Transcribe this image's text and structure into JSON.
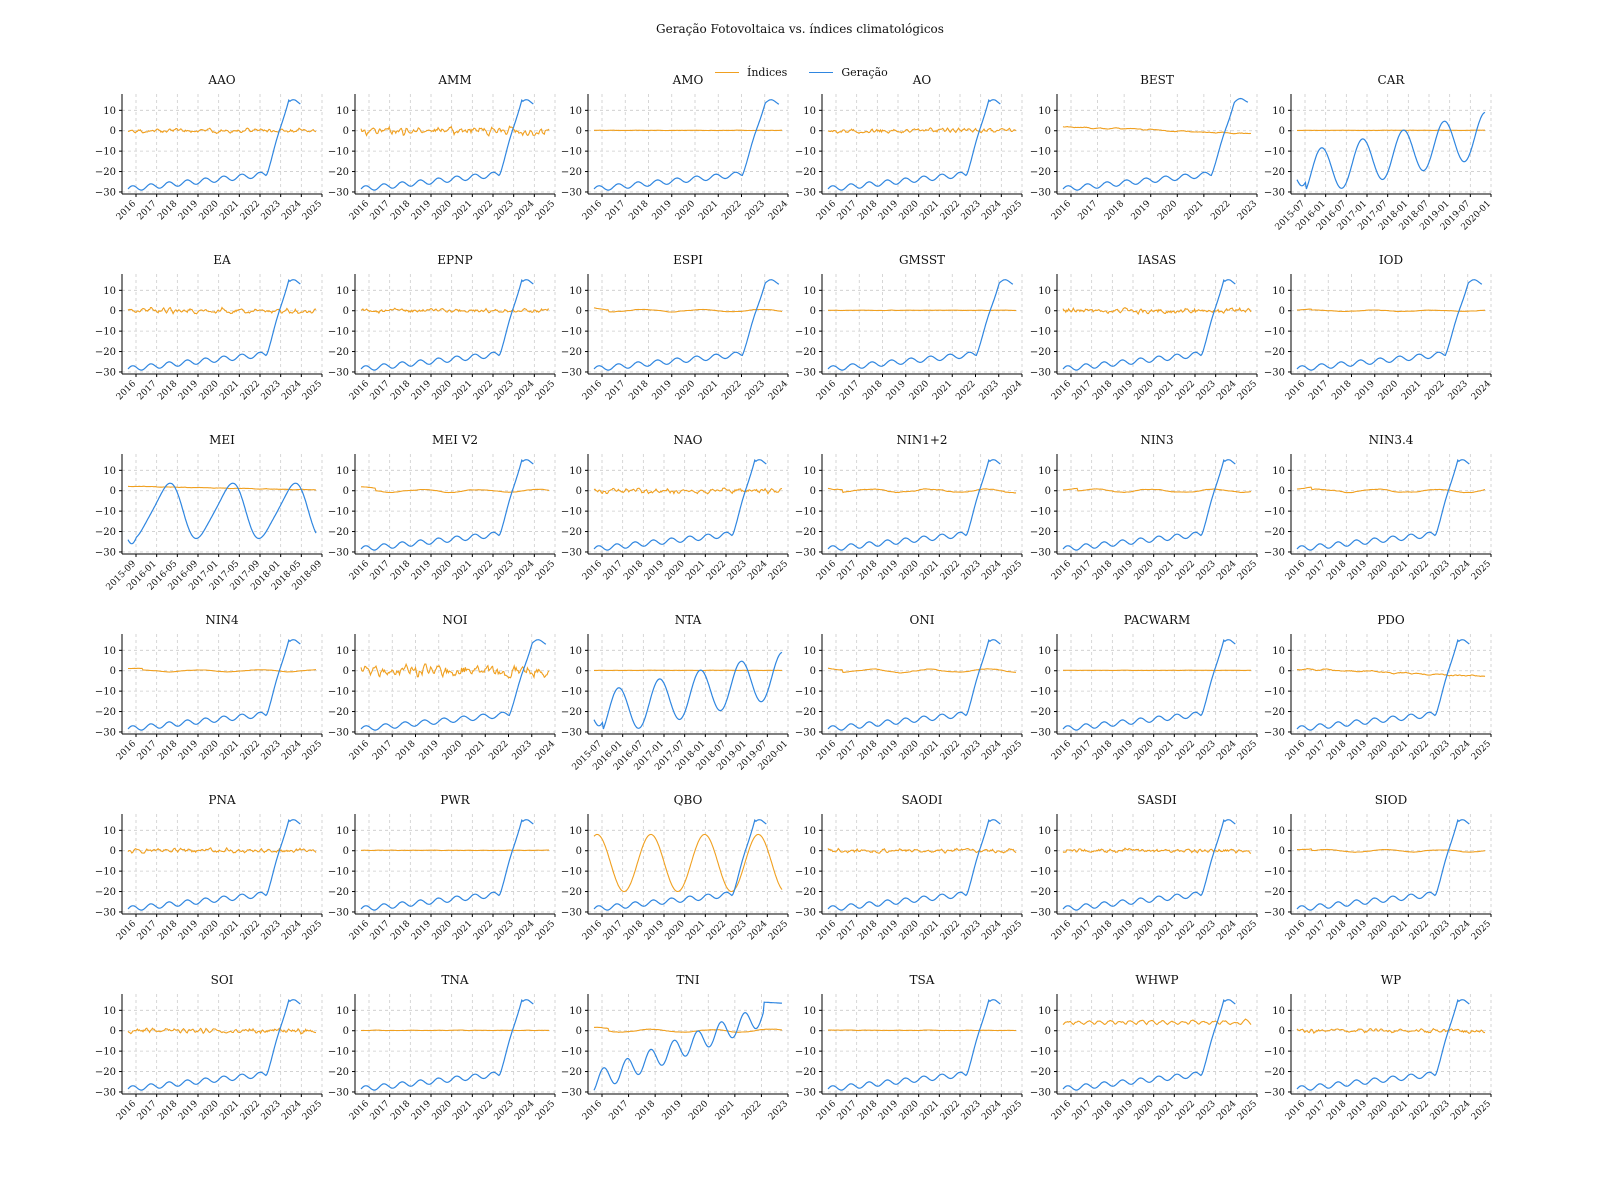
{
  "chart_data": {
    "type": "line",
    "title": "Geração Fotovoltaica vs. índices climatológicos",
    "legend": {
      "placement": "top-center",
      "entries": [
        {
          "name": "Índices",
          "color": "#f0a020"
        },
        {
          "name": "Geração",
          "color": "#2f86e0"
        }
      ]
    },
    "grid": true,
    "ylim": [
      -31,
      18
    ],
    "yticks": [
      "10",
      "0",
      "−10",
      "−20",
      "−30"
    ],
    "colors": {
      "indices": "#f0a020",
      "geracao": "#2f86e0"
    },
    "panels": [
      {
        "title": "AAO",
        "xticks": [
          "2016",
          "2017",
          "2018",
          "2019",
          "2020",
          "2021",
          "2022",
          "2023",
          "2024",
          "2025"
        ],
        "generation": "long",
        "index": {
          "style": "noisy",
          "amp": 1.3
        }
      },
      {
        "title": "AMM",
        "xticks": [
          "2016",
          "2017",
          "2018",
          "2019",
          "2020",
          "2021",
          "2022",
          "2023",
          "2024",
          "2025"
        ],
        "generation": "long",
        "index": {
          "style": "noisy",
          "amp": 2.5
        }
      },
      {
        "title": "AMO",
        "xticks": [
          "2016",
          "2017",
          "2018",
          "2019",
          "2020",
          "2021",
          "2022",
          "2023",
          "2024"
        ],
        "generation": "mid",
        "index": {
          "style": "flat",
          "amp": 0.3
        }
      },
      {
        "title": "AO",
        "xticks": [
          "2016",
          "2017",
          "2018",
          "2019",
          "2020",
          "2021",
          "2022",
          "2023",
          "2024",
          "2025"
        ],
        "generation": "long",
        "index": {
          "style": "noisy",
          "amp": 1.4
        }
      },
      {
        "title": "BEST",
        "xticks": [
          "2016",
          "2017",
          "2018",
          "2019",
          "2020",
          "2021",
          "2022",
          "2023"
        ],
        "generation": "short",
        "index": {
          "style": "drift",
          "amp": 1.0
        }
      },
      {
        "title": "CAR",
        "xticks": [
          "2015-07",
          "2016-01",
          "2016-07",
          "2017-01",
          "2017-07",
          "2018-01",
          "2018-07",
          "2019-01",
          "2019-07",
          "2020-01"
        ],
        "generation": "seasonal",
        "index": {
          "style": "flat",
          "amp": 0.2
        }
      },
      {
        "title": "EA",
        "xticks": [
          "2016",
          "2017",
          "2018",
          "2019",
          "2020",
          "2021",
          "2022",
          "2023",
          "2024",
          "2025"
        ],
        "generation": "long",
        "index": {
          "style": "noisy",
          "amp": 1.6
        }
      },
      {
        "title": "EPNP",
        "xticks": [
          "2016",
          "2017",
          "2018",
          "2019",
          "2020",
          "2021",
          "2022",
          "2023",
          "2024",
          "2025"
        ],
        "generation": "long",
        "index": {
          "style": "noisy",
          "amp": 1.2
        }
      },
      {
        "title": "ESPI",
        "xticks": [
          "2016",
          "2017",
          "2018",
          "2019",
          "2020",
          "2021",
          "2022",
          "2023",
          "2024"
        ],
        "generation": "mid",
        "index": {
          "style": "smooth",
          "amp": 1.0
        }
      },
      {
        "title": "GMSST",
        "xticks": [
          "2016",
          "2017",
          "2018",
          "2019",
          "2020",
          "2021",
          "2022",
          "2023",
          "2024"
        ],
        "generation": "mid",
        "index": {
          "style": "flat",
          "amp": 0.3
        }
      },
      {
        "title": "IASAS",
        "xticks": [
          "2016",
          "2017",
          "2018",
          "2019",
          "2020",
          "2021",
          "2022",
          "2023",
          "2024",
          "2025"
        ],
        "generation": "long",
        "index": {
          "style": "noisy",
          "amp": 1.6
        }
      },
      {
        "title": "IOD",
        "xticks": [
          "2016",
          "2017",
          "2018",
          "2019",
          "2020",
          "2021",
          "2022",
          "2023",
          "2024"
        ],
        "generation": "mid",
        "index": {
          "style": "smooth",
          "amp": 0.5
        }
      },
      {
        "title": "MEI",
        "xticks": [
          "2015-09",
          "2016-01",
          "2016-05",
          "2016-09",
          "2017-01",
          "2017-05",
          "2017-09",
          "2018-01",
          "2018-05",
          "2018-09"
        ],
        "generation": "mei",
        "index": {
          "style": "mei",
          "amp": 1.0
        }
      },
      {
        "title": "MEI V2",
        "xticks": [
          "2016",
          "2017",
          "2018",
          "2019",
          "2020",
          "2021",
          "2022",
          "2023",
          "2024",
          "2025"
        ],
        "generation": "long",
        "index": {
          "style": "smooth",
          "amp": 1.2
        }
      },
      {
        "title": "NAO",
        "xticks": [
          "2016",
          "2017",
          "2018",
          "2019",
          "2020",
          "2021",
          "2022",
          "2023",
          "2024",
          "2025"
        ],
        "generation": "long",
        "index": {
          "style": "noisy",
          "amp": 1.5
        }
      },
      {
        "title": "NIN1+2",
        "xticks": [
          "2016",
          "2017",
          "2018",
          "2019",
          "2020",
          "2021",
          "2022",
          "2023",
          "2024",
          "2025"
        ],
        "generation": "long",
        "index": {
          "style": "smooth",
          "amp": 1.5
        }
      },
      {
        "title": "NIN3",
        "xticks": [
          "2016",
          "2017",
          "2018",
          "2019",
          "2020",
          "2021",
          "2022",
          "2023",
          "2024",
          "2025"
        ],
        "generation": "long",
        "index": {
          "style": "smooth",
          "amp": 1.3
        }
      },
      {
        "title": "NIN3.4",
        "xticks": [
          "2016",
          "2017",
          "2018",
          "2019",
          "2020",
          "2021",
          "2022",
          "2023",
          "2024",
          "2025"
        ],
        "generation": "long",
        "index": {
          "style": "smooth",
          "amp": 1.3
        }
      },
      {
        "title": "NIN4",
        "xticks": [
          "2016",
          "2017",
          "2018",
          "2019",
          "2020",
          "2021",
          "2022",
          "2023",
          "2024",
          "2025"
        ],
        "generation": "long",
        "index": {
          "style": "smooth",
          "amp": 0.8
        }
      },
      {
        "title": "NOI",
        "xticks": [
          "2016",
          "2017",
          "2018",
          "2019",
          "2020",
          "2021",
          "2022",
          "2023",
          "2024"
        ],
        "generation": "mid",
        "index": {
          "style": "noisy",
          "amp": 3.5
        }
      },
      {
        "title": "NTA",
        "xticks": [
          "2015-07",
          "2016-01",
          "2016-07",
          "2017-01",
          "2017-07",
          "2018-01",
          "2018-07",
          "2019-01",
          "2019-07",
          "2020-01"
        ],
        "generation": "seasonal",
        "index": {
          "style": "flat",
          "amp": 0.2
        }
      },
      {
        "title": "ONI",
        "xticks": [
          "2016",
          "2017",
          "2018",
          "2019",
          "2020",
          "2021",
          "2022",
          "2023",
          "2024",
          "2025"
        ],
        "generation": "long",
        "index": {
          "style": "smooth",
          "amp": 1.3
        }
      },
      {
        "title": "PACWARM",
        "xticks": [
          "2016",
          "2017",
          "2018",
          "2019",
          "2020",
          "2021",
          "2022",
          "2023",
          "2024",
          "2025"
        ],
        "generation": "long",
        "index": {
          "style": "flat",
          "amp": 0.2
        }
      },
      {
        "title": "PDO",
        "xticks": [
          "2016",
          "2017",
          "2018",
          "2019",
          "2020",
          "2021",
          "2022",
          "2023",
          "2024",
          "2025"
        ],
        "generation": "long",
        "index": {
          "style": "pdo",
          "amp": 1.2
        }
      },
      {
        "title": "PNA",
        "xticks": [
          "2016",
          "2017",
          "2018",
          "2019",
          "2020",
          "2021",
          "2022",
          "2023",
          "2024",
          "2025"
        ],
        "generation": "long",
        "index": {
          "style": "noisy",
          "amp": 1.4
        }
      },
      {
        "title": "PWR",
        "xticks": [
          "2016",
          "2017",
          "2018",
          "2019",
          "2020",
          "2021",
          "2022",
          "2023",
          "2024",
          "2025"
        ],
        "generation": "long",
        "index": {
          "style": "flat",
          "amp": 0.3
        }
      },
      {
        "title": "QBO",
        "xticks": [
          "2016",
          "2017",
          "2018",
          "2019",
          "2020",
          "2021",
          "2022",
          "2023",
          "2024",
          "2025"
        ],
        "generation": "long",
        "index": {
          "style": "qbo",
          "amp": 14
        }
      },
      {
        "title": "SAODI",
        "xticks": [
          "2016",
          "2017",
          "2018",
          "2019",
          "2020",
          "2021",
          "2022",
          "2023",
          "2024",
          "2025"
        ],
        "generation": "long",
        "index": {
          "style": "noisy",
          "amp": 1.2
        }
      },
      {
        "title": "SASDI",
        "xticks": [
          "2016",
          "2017",
          "2018",
          "2019",
          "2020",
          "2021",
          "2022",
          "2023",
          "2024",
          "2025"
        ],
        "generation": "long",
        "index": {
          "style": "noisy",
          "amp": 1.3
        }
      },
      {
        "title": "SIOD",
        "xticks": [
          "2016",
          "2017",
          "2018",
          "2019",
          "2020",
          "2021",
          "2022",
          "2023",
          "2024",
          "2025"
        ],
        "generation": "long",
        "index": {
          "style": "smooth",
          "amp": 0.9
        }
      },
      {
        "title": "SOI",
        "xticks": [
          "2016",
          "2017",
          "2018",
          "2019",
          "2020",
          "2021",
          "2022",
          "2023",
          "2024",
          "2025"
        ],
        "generation": "long",
        "index": {
          "style": "noisy",
          "amp": 1.6
        }
      },
      {
        "title": "TNA",
        "xticks": [
          "2016",
          "2017",
          "2018",
          "2019",
          "2020",
          "2021",
          "2022",
          "2023",
          "2024",
          "2025"
        ],
        "generation": "long",
        "index": {
          "style": "flat",
          "amp": 0.4
        }
      },
      {
        "title": "TNI",
        "xticks": [
          "2016",
          "2017",
          "2018",
          "2019",
          "2020",
          "2021",
          "2022",
          "2023"
        ],
        "generation": "tni",
        "index": {
          "style": "smooth",
          "amp": 1.2
        }
      },
      {
        "title": "TSA",
        "xticks": [
          "2016",
          "2017",
          "2018",
          "2019",
          "2020",
          "2021",
          "2022",
          "2023",
          "2024",
          "2025"
        ],
        "generation": "long",
        "index": {
          "style": "flat",
          "amp": 0.4
        }
      },
      {
        "title": "WHWP",
        "xticks": [
          "2016",
          "2017",
          "2018",
          "2019",
          "2020",
          "2021",
          "2022",
          "2023",
          "2024",
          "2025"
        ],
        "generation": "long",
        "index": {
          "style": "whwp",
          "amp": 4.5
        }
      },
      {
        "title": "WP",
        "xticks": [
          "2016",
          "2017",
          "2018",
          "2019",
          "2020",
          "2021",
          "2022",
          "2023",
          "2024",
          "2025"
        ],
        "generation": "long",
        "index": {
          "style": "noisy",
          "amp": 1.3
        }
      }
    ]
  }
}
